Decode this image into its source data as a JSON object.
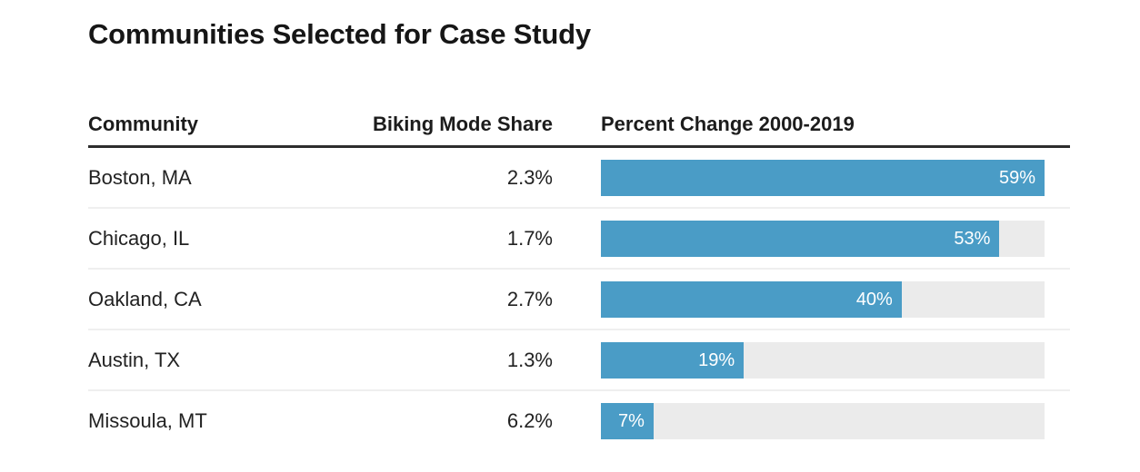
{
  "title": "Communities Selected for Case Study",
  "table": {
    "headers": {
      "community": "Community",
      "mode_share": "Biking Mode Share",
      "percent_change": "Percent Change 2000-2019"
    },
    "rows": [
      {
        "community": "Boston, MA",
        "mode_share": "2.3%",
        "percent_change": 59,
        "percent_change_label": "59%"
      },
      {
        "community": "Chicago, IL",
        "mode_share": "1.7%",
        "percent_change": 53,
        "percent_change_label": "53%"
      },
      {
        "community": "Oakland, CA",
        "mode_share": "2.7%",
        "percent_change": 40,
        "percent_change_label": "40%"
      },
      {
        "community": "Austin, TX",
        "mode_share": "1.3%",
        "percent_change": 19,
        "percent_change_label": "19%"
      },
      {
        "community": "Missoula, MT",
        "mode_share": "6.2%",
        "percent_change": 7,
        "percent_change_label": "7%"
      }
    ]
  },
  "chart_data": {
    "type": "bar",
    "orientation": "horizontal",
    "title": "Communities Selected for Case Study",
    "categories": [
      "Boston, MA",
      "Chicago, IL",
      "Oakland, CA",
      "Austin, TX",
      "Missoula, MT"
    ],
    "series": [
      {
        "name": "Biking Mode Share",
        "values_text": [
          "2.3%",
          "1.7%",
          "2.7%",
          "1.3%",
          "6.2%"
        ],
        "values": [
          2.3,
          1.7,
          2.7,
          1.3,
          6.2
        ]
      },
      {
        "name": "Percent Change 2000-2019",
        "values": [
          59,
          53,
          40,
          19,
          7
        ]
      }
    ],
    "bar_value_labels": [
      "59%",
      "53%",
      "40%",
      "19%",
      "7%"
    ],
    "xlabel": "",
    "ylabel": "",
    "xlim": [
      0,
      59
    ],
    "grid": false,
    "legend_position": "none",
    "value_labels_inside_bars": true
  },
  "colors": {
    "bar_fill": "#4a9cc6",
    "bar_track": "#ebebeb",
    "bar_label_text": "#ffffff",
    "header_rule": "#2d2d2d",
    "row_divider": "#efefef",
    "title_text": "#161616",
    "body_text": "#222222"
  }
}
